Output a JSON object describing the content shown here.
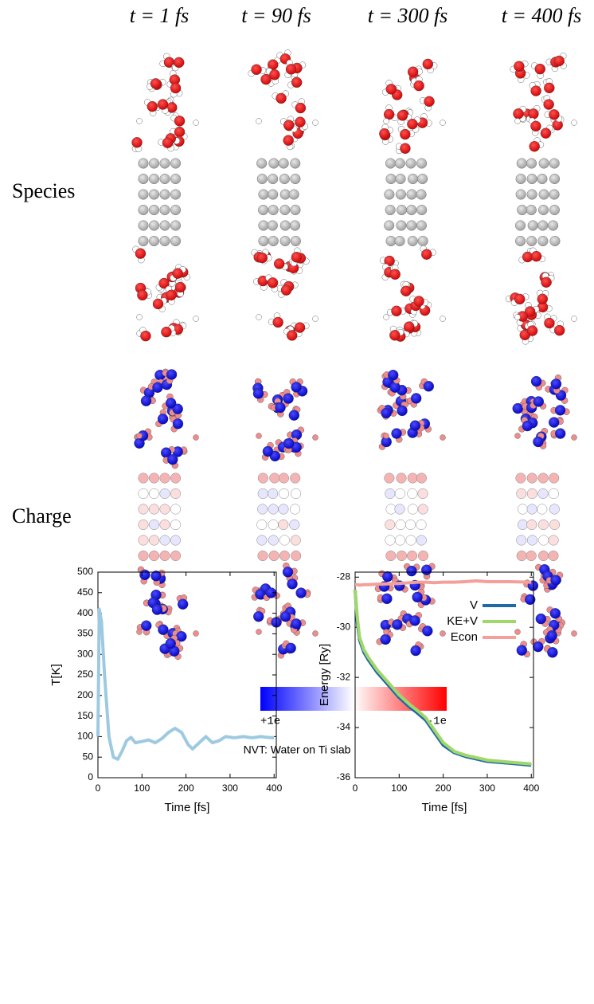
{
  "column_labels": [
    "t = 1 fs",
    "t = 90 fs",
    "t = 300 fs",
    "t = 400 fs"
  ],
  "row_labels": [
    "Species",
    "Charge"
  ],
  "colorbar": {
    "min_label": "+1e",
    "max_label": "-1e"
  },
  "suptitle": "NVT: Water on Ti slab",
  "chart_data": [
    {
      "type": "line",
      "xlabel": "Time [fs]",
      "ylabel": "T[K]",
      "xlim": [
        0,
        405
      ],
      "xticks": [
        0,
        100,
        200,
        300,
        400
      ],
      "ylim": [
        0,
        500
      ],
      "yticks": [
        0,
        50,
        100,
        150,
        200,
        250,
        300,
        350,
        400,
        450,
        500
      ],
      "x": [
        0,
        3,
        8,
        15,
        25,
        35,
        45,
        55,
        65,
        75,
        85,
        100,
        115,
        130,
        145,
        160,
        175,
        190,
        205,
        215,
        230,
        245,
        260,
        275,
        290,
        310,
        330,
        350,
        370,
        385,
        400
      ],
      "series": [
        {
          "color": "#9ecae1",
          "values": [
            100,
            410,
            380,
            250,
            100,
            50,
            45,
            65,
            90,
            98,
            85,
            88,
            92,
            85,
            95,
            110,
            120,
            110,
            80,
            70,
            85,
            100,
            85,
            90,
            100,
            97,
            100,
            97,
            100,
            98,
            97
          ]
        }
      ]
    },
    {
      "type": "line",
      "xlabel": "Time [fs]",
      "ylabel": "Energy [Ry]",
      "xlim": [
        0,
        405
      ],
      "xticks": [
        0,
        100,
        200,
        300,
        400
      ],
      "ylim": [
        -36,
        -27.8
      ],
      "yticks": [
        -36,
        -34,
        -32,
        -30,
        -28
      ],
      "legend": "right",
      "x": [
        0,
        5,
        10,
        20,
        30,
        50,
        75,
        100,
        125,
        140,
        160,
        180,
        200,
        225,
        250,
        275,
        300,
        350,
        400
      ],
      "series": [
        {
          "name": "V",
          "color": "#1f6aa5",
          "values": [
            -28.5,
            -29.8,
            -30.5,
            -31.0,
            -31.3,
            -31.8,
            -32.3,
            -32.8,
            -33.2,
            -33.4,
            -33.7,
            -34.2,
            -34.7,
            -35.0,
            -35.15,
            -35.25,
            -35.35,
            -35.42,
            -35.5
          ]
        },
        {
          "name": "KE+V",
          "color": "#a1d76a",
          "values": [
            -28.5,
            -29.6,
            -30.4,
            -30.9,
            -31.2,
            -31.7,
            -32.2,
            -32.7,
            -33.1,
            -33.3,
            -33.6,
            -34.1,
            -34.6,
            -34.95,
            -35.1,
            -35.2,
            -35.3,
            -35.38,
            -35.45
          ]
        },
        {
          "name": "Econ",
          "color": "#f4a09a",
          "values": [
            -28.3,
            -28.3,
            -28.32,
            -28.3,
            -28.3,
            -28.28,
            -28.27,
            -28.25,
            -28.22,
            -28.2,
            -28.2,
            -28.22,
            -28.2,
            -28.2,
            -28.18,
            -28.15,
            -28.18,
            -28.18,
            -28.2
          ]
        }
      ]
    }
  ]
}
